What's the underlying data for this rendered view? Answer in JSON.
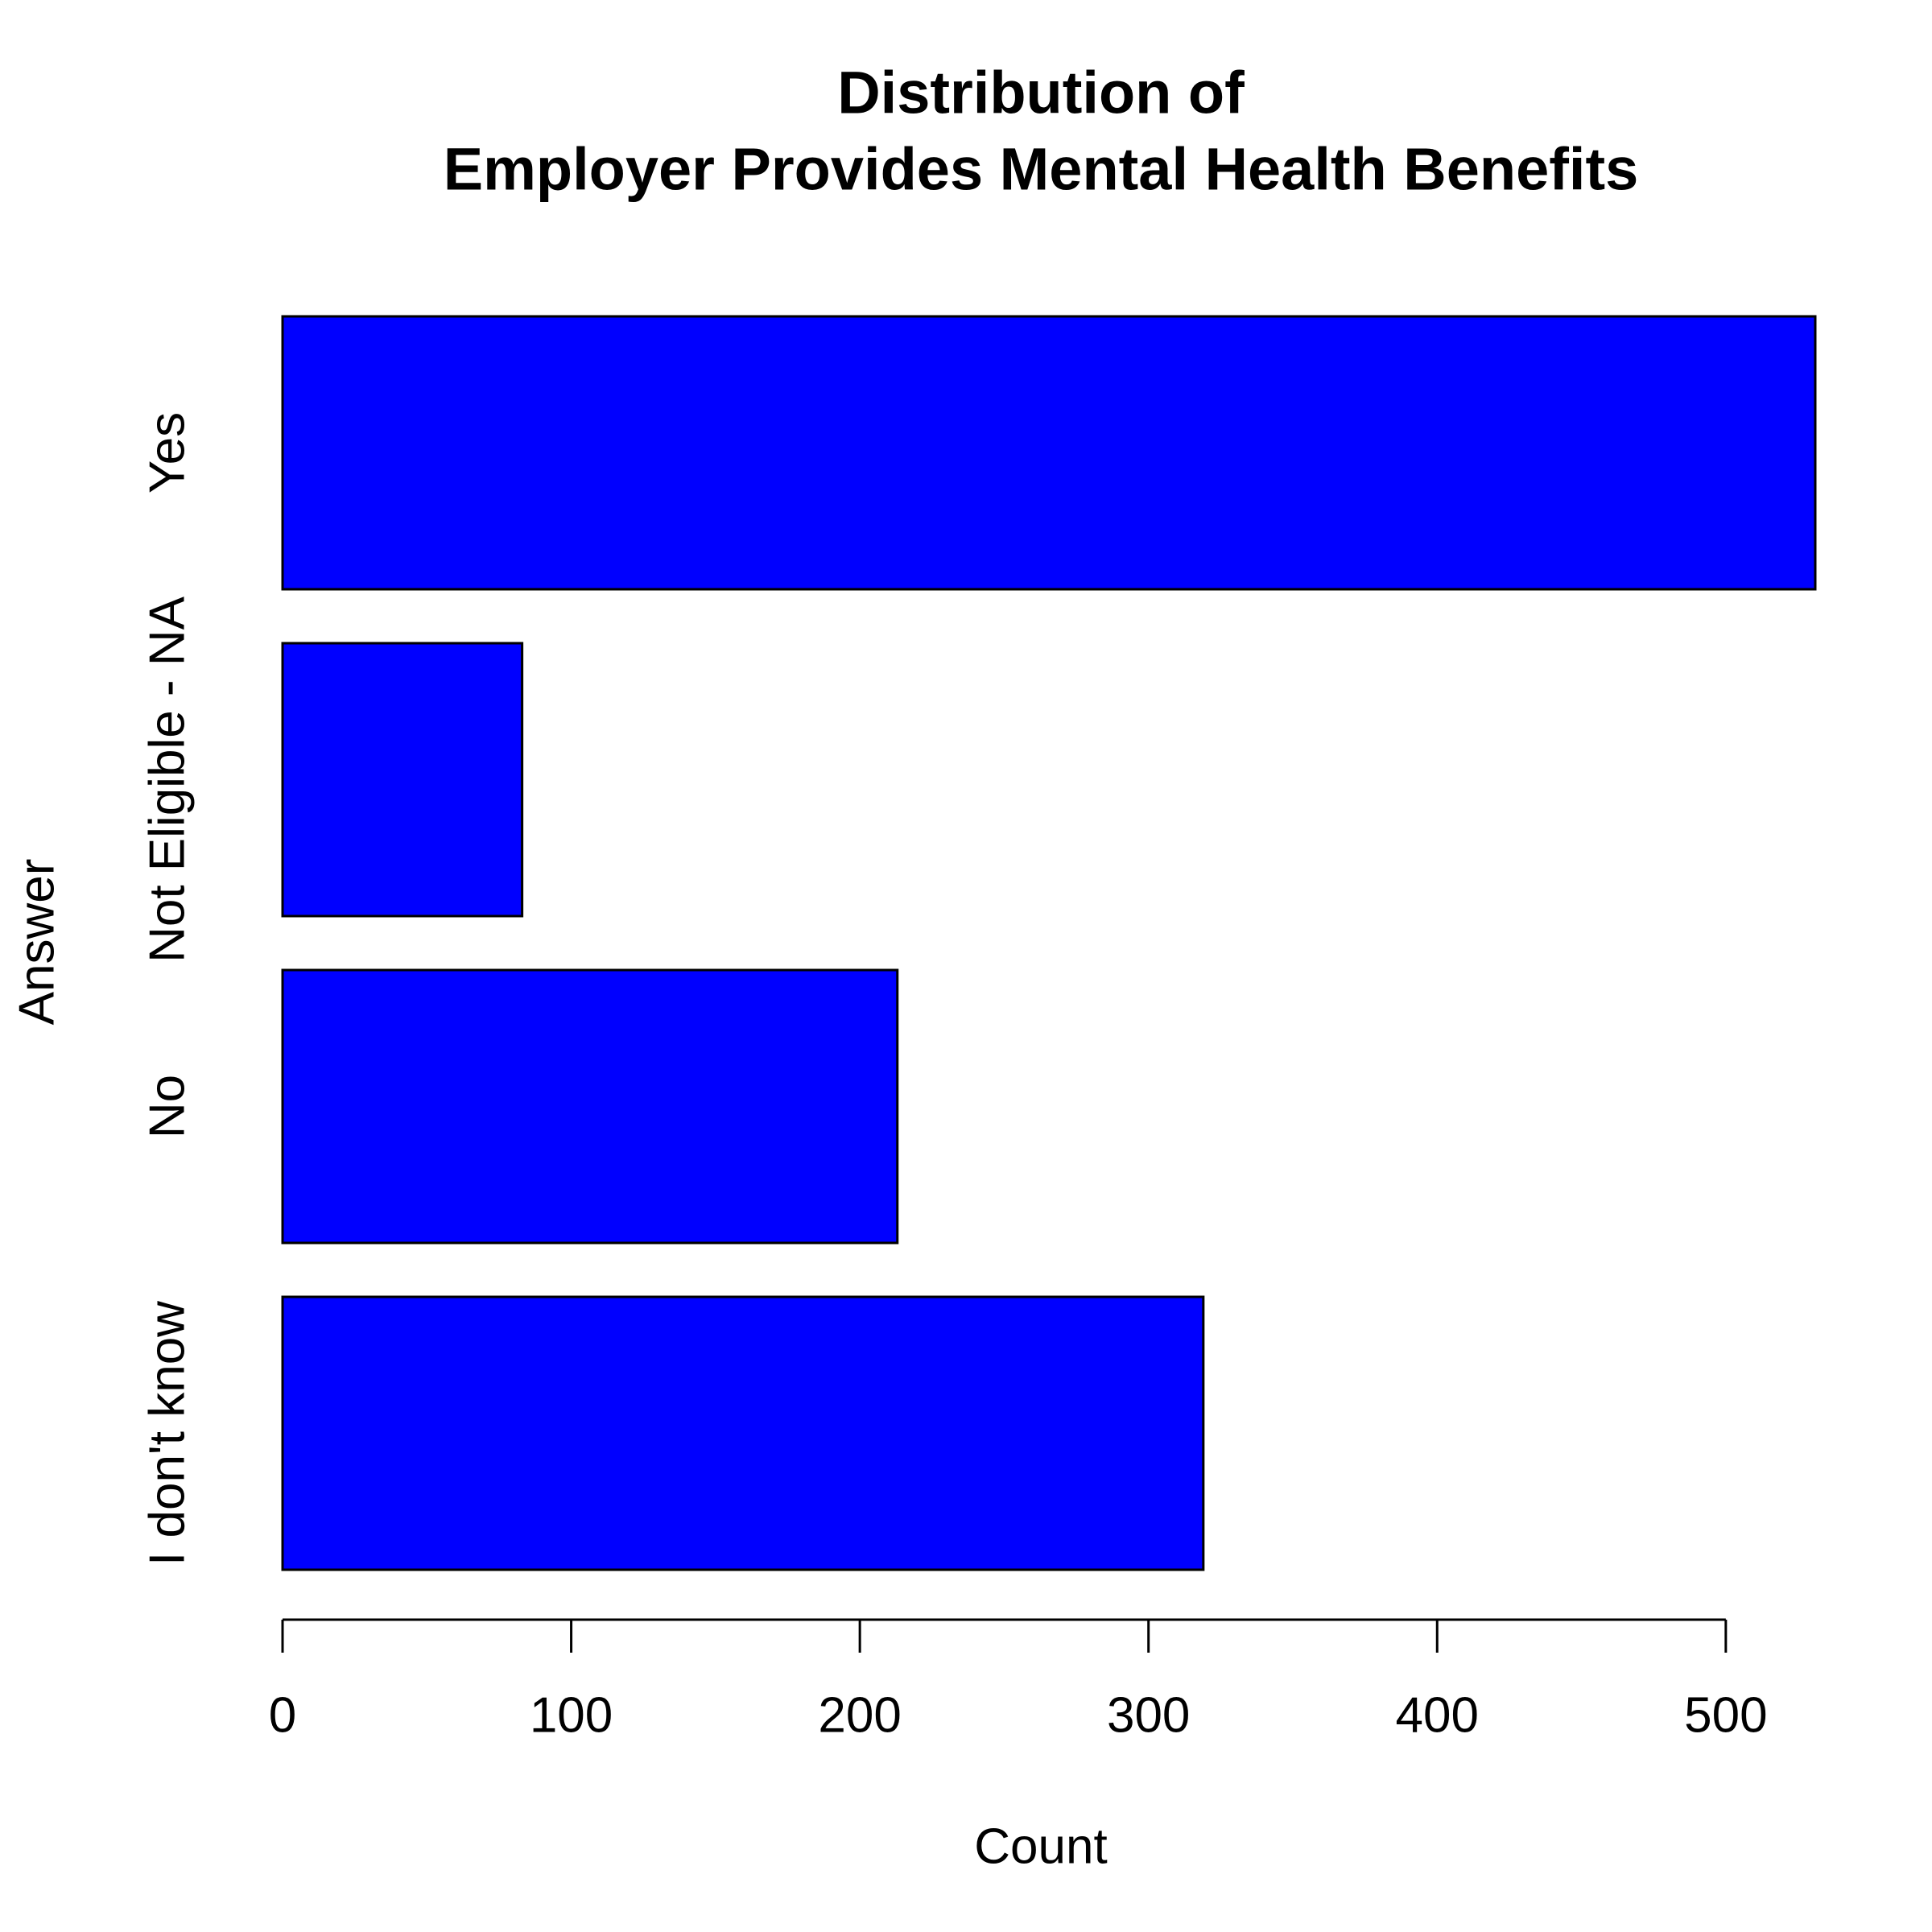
{
  "chart_data": {
    "type": "bar",
    "orientation": "horizontal",
    "title": [
      "Distribution of",
      "Employer Provides Mental Health Benefits"
    ],
    "xlabel": "Count",
    "ylabel": "Answer",
    "categories": [
      "I don't know",
      "No",
      "Not Eligible - NA",
      "Yes"
    ],
    "values": [
      319,
      213,
      83,
      531
    ],
    "color": "#0000ff",
    "xlim": [
      0,
      531
    ],
    "xticks": [
      0,
      100,
      200,
      300,
      400,
      500
    ],
    "grid": false
  }
}
